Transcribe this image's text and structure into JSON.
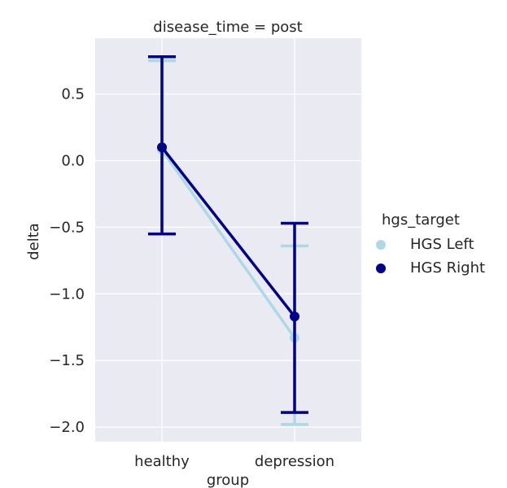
{
  "chart_data": {
    "type": "line",
    "title": "disease_time = post",
    "xlabel": "group",
    "ylabel": "delta",
    "categories": [
      "healthy",
      "depression"
    ],
    "ylim": [
      -2.1,
      0.9
    ],
    "yticks": [
      0.5,
      0.0,
      -0.5,
      -1.0,
      -1.5,
      -2.0
    ],
    "ytick_labels": [
      "0.5",
      "0.0",
      "−0.5",
      "−1.0",
      "−1.5",
      "−2.0"
    ],
    "grid": true,
    "legend_position": "right",
    "legend_title": "hgs_target",
    "series": [
      {
        "name": "HGS Left",
        "color": "#add8e6",
        "values": [
          0.08,
          -1.33
        ],
        "ci_low": [
          -0.55,
          -1.98
        ],
        "ci_high": [
          0.75,
          -0.64
        ]
      },
      {
        "name": "HGS Right",
        "color": "#00008b",
        "values": [
          0.1,
          -1.17
        ],
        "ci_low": [
          -0.55,
          -1.89
        ],
        "ci_high": [
          0.78,
          -0.47
        ]
      }
    ]
  }
}
